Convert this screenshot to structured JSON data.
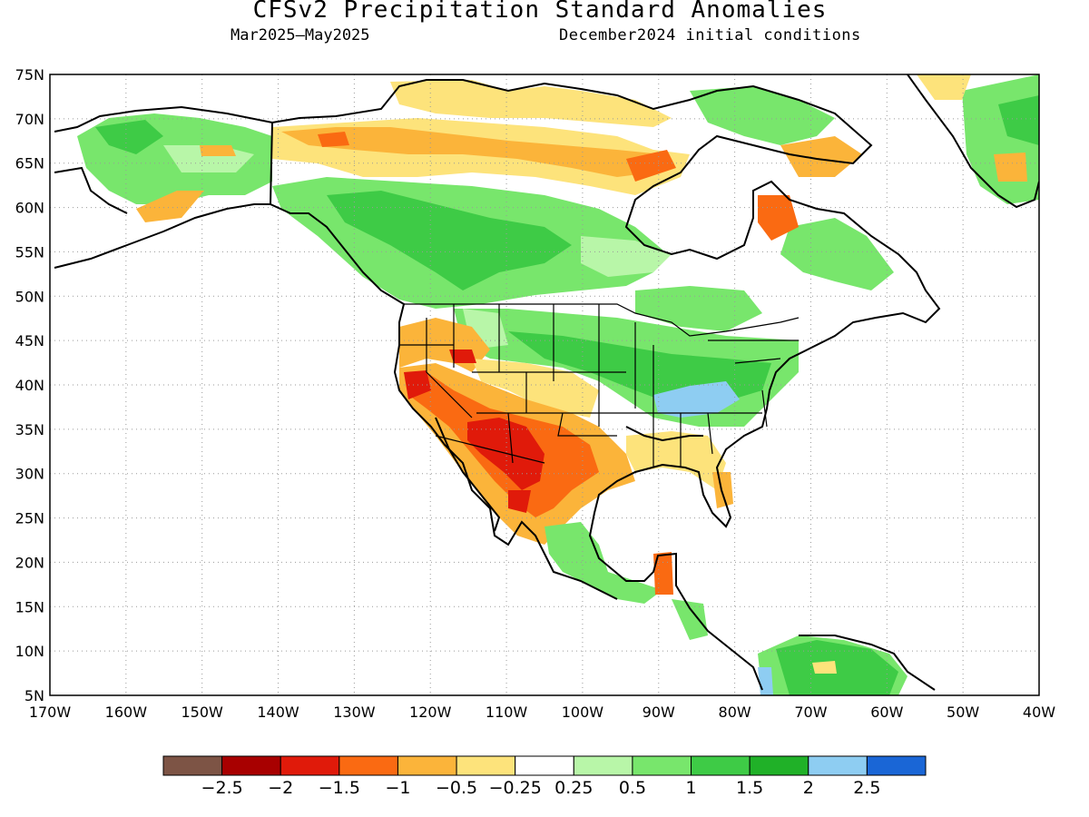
{
  "title": "CFSv2 Precipitation Standard Anomalies",
  "period": "Mar2025—May2025",
  "initial_conditions": "December2024 initial conditions",
  "map": {
    "lon_range": [
      -170,
      -40
    ],
    "lat_range": [
      5,
      75
    ],
    "lat_ticks": [
      "75N",
      "70N",
      "65N",
      "60N",
      "55N",
      "50N",
      "45N",
      "40N",
      "35N",
      "30N",
      "25N",
      "20N",
      "15N",
      "10N",
      "5N"
    ],
    "lon_ticks": [
      "170W",
      "160W",
      "150W",
      "140W",
      "130W",
      "120W",
      "110W",
      "100W",
      "90W",
      "80W",
      "70W",
      "60W",
      "50W",
      "40W"
    ],
    "grid": "dotted"
  },
  "colorbar": {
    "colors": [
      "#7d5445",
      "#a80000",
      "#e01a0a",
      "#fa6a12",
      "#fbb43a",
      "#fde37b",
      "#ffffff",
      "#b8f6a8",
      "#78e66c",
      "#3ecb46",
      "#20b128",
      "#8ecdf2",
      "#1a66d6"
    ],
    "labels": [
      "−2.5",
      "−2",
      "−1.5",
      "−1",
      "−0.5",
      "−0.25",
      "0.25",
      "0.5",
      "1",
      "1.5",
      "2",
      "2.5"
    ]
  }
}
